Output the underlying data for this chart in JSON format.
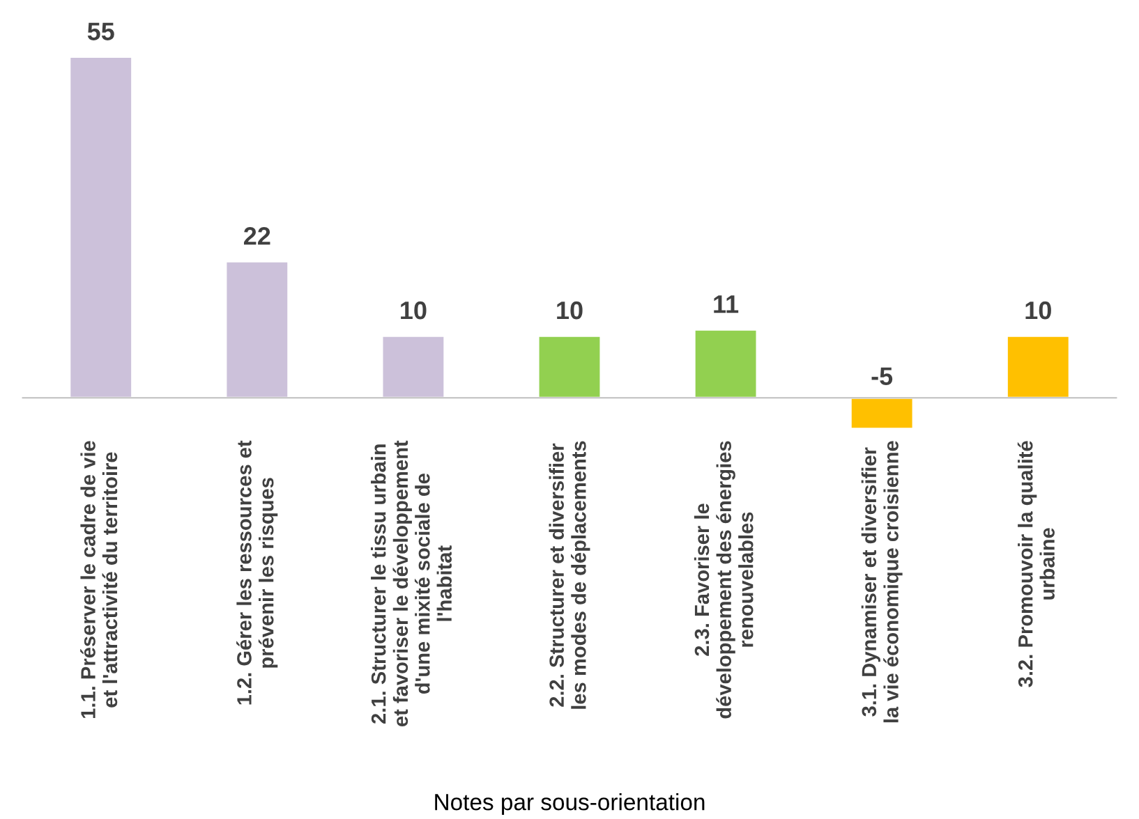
{
  "chart_data": {
    "type": "bar",
    "xlabel": "Notes par sous-orientation",
    "categories": [
      "1.1. Préserver le cadre de vie\net l'attractivité du territoire",
      "1.2. Gérer les ressources et\nprévenir les risques",
      "2.1. Structurer le tissu urbain\net favoriser le développement\nd'une mixité sociale de\nl'habitat",
      "2.2. Structurer et diversifier\nles modes de déplacements",
      "2.3. Favoriser le\ndéveloppement des énergies\nrenouvelables",
      "3.1. Dynamiser et diversifier\nla vie économique croisienne",
      "3.2. Promouvoir la qualité\nurbaine"
    ],
    "values": [
      55,
      22,
      10,
      10,
      11,
      -5,
      10
    ],
    "colors": [
      "#ccc1da",
      "#ccc1da",
      "#ccc1da",
      "#92d050",
      "#92d050",
      "#ffc000",
      "#ffc000"
    ],
    "data_labels": true,
    "grid": false,
    "legend": false
  }
}
